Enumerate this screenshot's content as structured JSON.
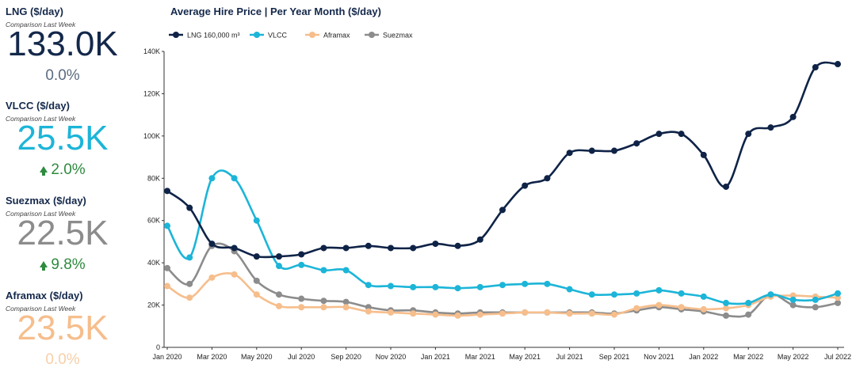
{
  "kpis": [
    {
      "title": "LNG ($/day)",
      "subtitle": "Comparison Last Week",
      "value": "133.0K",
      "change": "0.0%",
      "value_color": "#14284b",
      "change_color": "#5a6b80",
      "arrow": false
    },
    {
      "title": "VLCC ($/day)",
      "subtitle": "Comparison Last Week",
      "value": "25.5K",
      "change": "2.0%",
      "value_color": "#1cb5d8",
      "change_color": "#2e8b3e",
      "arrow": true
    },
    {
      "title": "Suezmax ($/day)",
      "subtitle": "Comparison Last Week",
      "value": "22.5K",
      "change": "9.8%",
      "value_color": "#8c8c8c",
      "change_color": "#2e8b3e",
      "arrow": true
    },
    {
      "title": "Aframax ($/day)",
      "subtitle": "Comparison Last Week",
      "value": "23.5K",
      "change": "0.0%",
      "value_color": "#f6be8c",
      "change_color": "#f6cfa8",
      "arrow": false
    }
  ],
  "chart_data": {
    "type": "line",
    "title": "Average Hire Price | Per Year Month ($/day)",
    "x": [
      "Jan 2020",
      "Feb 2020",
      "Mar 2020",
      "Apr 2020",
      "May 2020",
      "Jun 2020",
      "Jul 2020",
      "Aug 2020",
      "Sep 2020",
      "Oct 2020",
      "Nov 2020",
      "Dec 2020",
      "Jan 2021",
      "Feb 2021",
      "Mar 2021",
      "Apr 2021",
      "May 2021",
      "Jun 2021",
      "Jul 2021",
      "Aug 2021",
      "Sep 2021",
      "Oct 2021",
      "Nov 2021",
      "Dec 2021",
      "Jan 2022",
      "Feb 2022",
      "Mar 2022",
      "Apr 2022",
      "May 2022",
      "Jun 2022",
      "Jul 2022"
    ],
    "x_tick_labels": [
      "Jan 2020",
      "Mar 2020",
      "May 2020",
      "Jul 2020",
      "Sep 2020",
      "Nov 2020",
      "Jan 2021",
      "Mar 2021",
      "May 2021",
      "Jul 2021",
      "Sep 2021",
      "Nov 2021",
      "Jan 2022",
      "Mar 2022",
      "May 2022",
      "Jul 2022"
    ],
    "y_ticks": [
      0,
      20000,
      40000,
      60000,
      80000,
      100000,
      120000,
      140000
    ],
    "y_tick_labels": [
      "0",
      "20K",
      "40K",
      "60K",
      "80K",
      "100K",
      "120K",
      "140K"
    ],
    "ylim": [
      0,
      140000
    ],
    "legend_position": "top-left",
    "grid": false,
    "series": [
      {
        "name": "LNG 160,000 m³",
        "color": "#0f2347",
        "values": [
          74000,
          66000,
          49000,
          47000,
          43000,
          43000,
          44000,
          47000,
          47000,
          48000,
          47000,
          47000,
          49000,
          48000,
          51000,
          65000,
          76500,
          80000,
          92000,
          93000,
          93000,
          96500,
          101000,
          101000,
          91000,
          76000,
          101000,
          104000,
          109000,
          132500,
          134000
        ]
      },
      {
        "name": "VLCC",
        "color": "#1cb5d8",
        "values": [
          57500,
          42500,
          80000,
          80000,
          60000,
          38500,
          39000,
          36500,
          36500,
          29500,
          29000,
          28500,
          28500,
          28000,
          28500,
          29500,
          30000,
          30000,
          27500,
          25000,
          25000,
          25500,
          27000,
          25500,
          24000,
          21000,
          21000,
          25000,
          22500,
          22500,
          25500
        ]
      },
      {
        "name": "Aframax",
        "color": "#f6be8c",
        "values": [
          29000,
          23500,
          33000,
          34500,
          25000,
          19500,
          19000,
          19000,
          19000,
          17000,
          16500,
          16000,
          15500,
          15000,
          15500,
          16000,
          16500,
          16500,
          16000,
          16000,
          15500,
          18500,
          20000,
          19000,
          18000,
          18500,
          20000,
          24000,
          24500,
          24000,
          23500
        ]
      },
      {
        "name": "Suezmax",
        "color": "#8c8c8c",
        "values": [
          37500,
          30000,
          48000,
          45500,
          31500,
          25000,
          23000,
          22000,
          21500,
          19000,
          17500,
          17500,
          16500,
          16000,
          16500,
          16500,
          16500,
          16500,
          16500,
          16500,
          16000,
          17500,
          19000,
          18000,
          17000,
          15000,
          15500,
          25000,
          20000,
          19000,
          21000
        ]
      }
    ]
  }
}
